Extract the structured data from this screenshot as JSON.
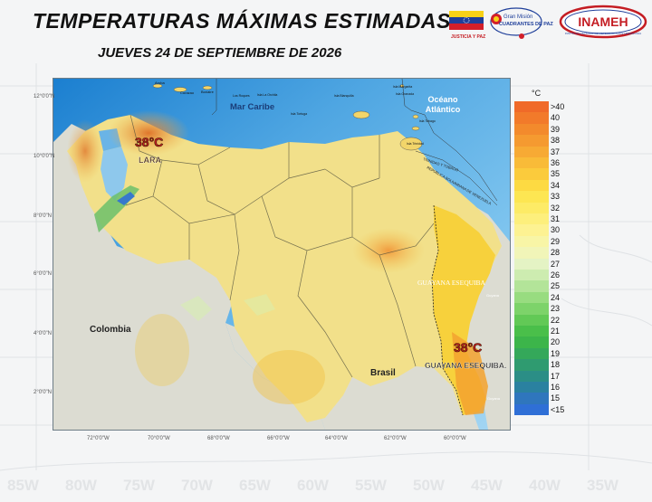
{
  "title": "TEMPERATURAS MÁXIMAS ESTIMADAS",
  "subtitle": "JUEVES 24 DE SEPTIEMBRE DE 2026",
  "logos": {
    "flag_text": "JUSTICIA Y PAZ",
    "mision_line1": "Gran Misión",
    "mision_line2": "CUADRANTES DE PAZ",
    "inameh": "INAMEH",
    "inameh_sub": "INSTITUTO NACIONAL DE METEOROLOGÍA E HIDROLOGÍA"
  },
  "map": {
    "sea_label": "Mar Caribe",
    "ocean_label_1": "Océano",
    "ocean_label_2": "Atlántico",
    "colombia": "Colombia",
    "brasil": "Brasil",
    "guyana_esequiba": "GUAYANA ESEQUIBA",
    "guyana_small_1": "Guyana",
    "guyana_small_2": "Guyana",
    "islands": [
      "Aruba",
      "Curazao",
      "Bonaire",
      "Isla Blanquilla",
      "Isla Tortuga",
      "Isla La Orchila",
      "Los Roques",
      "Isla Margarita",
      "Isla Granada",
      "Isla Tobago",
      "Isla Trinidad"
    ],
    "trinidad_text": "TRINIDAD Y TOBAGO",
    "venezuela_republic_text": "REPÚBLICA BOLIVARIANA DE VENEZUELA",
    "max_labels": [
      {
        "temp": "38°C",
        "place": "LARA"
      },
      {
        "temp": "38°C",
        "place": "GUAYANA ESEQUIBA."
      }
    ],
    "lat_labels": [
      "12°0'0\"N",
      "10°0'0\"N",
      "8°0'0\"N",
      "6°0'0\"N",
      "4°0'0\"N",
      "2°0'0\"N"
    ],
    "lon_labels": [
      "72°0'0\"W",
      "70°0'0\"W",
      "68°0'0\"W",
      "66°0'0\"W",
      "64°0'0\"W",
      "62°0'0\"W",
      "60°0'0\"W"
    ]
  },
  "legend": {
    "unit": "°C",
    "items": [
      {
        "label": ">40",
        "color": "#f06a28"
      },
      {
        "label": "40",
        "color": "#f27a2a"
      },
      {
        "label": "39",
        "color": "#f38a2c"
      },
      {
        "label": "38",
        "color": "#f59a30"
      },
      {
        "label": "37",
        "color": "#f7aa34"
      },
      {
        "label": "36",
        "color": "#f9bb38"
      },
      {
        "label": "35",
        "color": "#fbcb3c"
      },
      {
        "label": "34",
        "color": "#fdda42"
      },
      {
        "label": "33",
        "color": "#fde652"
      },
      {
        "label": "32",
        "color": "#fdeb66"
      },
      {
        "label": "31",
        "color": "#fdef7c"
      },
      {
        "label": "30",
        "color": "#fdf292"
      },
      {
        "label": "29",
        "color": "#f8f5a6"
      },
      {
        "label": "28",
        "color": "#f1f5b8"
      },
      {
        "label": "27",
        "color": "#e4f3c4"
      },
      {
        "label": "26",
        "color": "#cdecb0"
      },
      {
        "label": "25",
        "color": "#b3e499"
      },
      {
        "label": "24",
        "color": "#98dc80"
      },
      {
        "label": "23",
        "color": "#7dd36a"
      },
      {
        "label": "22",
        "color": "#62c956"
      },
      {
        "label": "21",
        "color": "#4abf4a"
      },
      {
        "label": "20",
        "color": "#3cb54a"
      },
      {
        "label": "19",
        "color": "#34a85a"
      },
      {
        "label": "18",
        "color": "#2f9b70"
      },
      {
        "label": "17",
        "color": "#2b8e86"
      },
      {
        "label": "16",
        "color": "#2a81a0"
      },
      {
        "label": "15",
        "color": "#2f76bd"
      },
      {
        "label": "<15",
        "color": "#2f6fd6"
      }
    ]
  },
  "background_longitudes": [
    "85W",
    "80W",
    "75W",
    "70W",
    "65W",
    "60W",
    "55W",
    "50W",
    "45W",
    "40W",
    "35W"
  ]
}
